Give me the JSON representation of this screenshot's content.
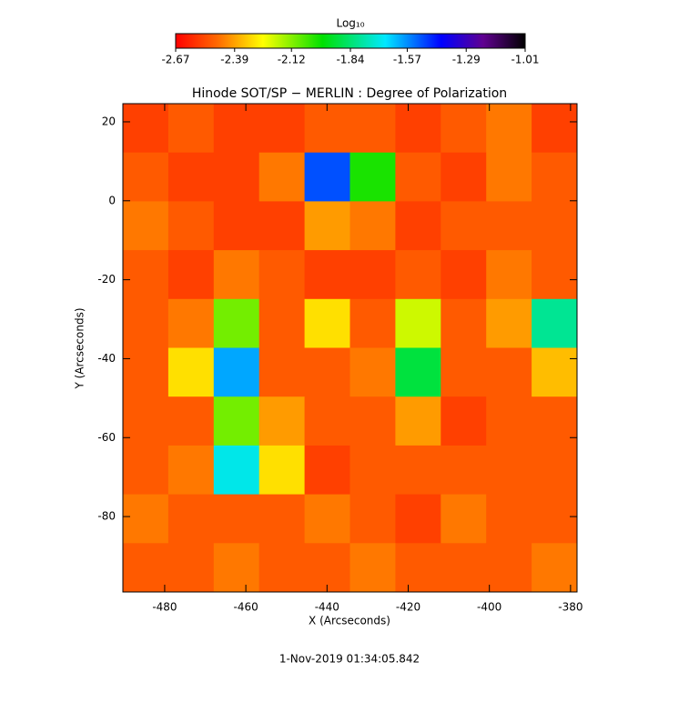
{
  "chart_data": {
    "type": "heatmap",
    "title": "Hinode SOT/SP − MERLIN : Degree of Polarization",
    "xlabel": "X (Arcseconds)",
    "ylabel": "Y (Arcseconds)",
    "colorbar_label": "Log₁₀",
    "footer": "1-Nov-2019 01:34:05.842",
    "xlim": [
      -490.3,
      -378.4
    ],
    "ylim": [
      -99.1,
      24.6
    ],
    "xticks": [
      -480,
      -460,
      -440,
      -420,
      -400,
      -380
    ],
    "yticks": [
      -80,
      -60,
      -40,
      -20,
      0,
      20
    ],
    "clim": [
      -2.67,
      -1.01
    ],
    "cticks": [
      -2.67,
      -2.39,
      -2.12,
      -1.84,
      -1.57,
      -1.29,
      -1.01
    ],
    "z": [
      [
        -2.55,
        -2.5,
        -2.55,
        -2.55,
        -2.5,
        -2.5,
        -2.55,
        -2.5,
        -2.45,
        -2.55
      ],
      [
        -2.5,
        -2.55,
        -2.55,
        -2.45,
        -1.5,
        -2.0,
        -2.5,
        -2.55,
        -2.45,
        -2.5
      ],
      [
        -2.45,
        -2.5,
        -2.55,
        -2.55,
        -2.4,
        -2.45,
        -2.55,
        -2.5,
        -2.5,
        -2.5
      ],
      [
        -2.5,
        -2.55,
        -2.45,
        -2.5,
        -2.55,
        -2.55,
        -2.5,
        -2.55,
        -2.45,
        -2.5
      ],
      [
        -2.5,
        -2.45,
        -2.1,
        -2.5,
        -2.3,
        -2.5,
        -2.2,
        -2.5,
        -2.4,
        -1.8
      ],
      [
        -2.5,
        -2.3,
        -1.6,
        -2.5,
        -2.5,
        -2.45,
        -1.9,
        -2.5,
        -2.5,
        -2.35
      ],
      [
        -2.5,
        -2.5,
        -2.1,
        -2.4,
        -2.5,
        -2.5,
        -2.4,
        -2.55,
        -2.5,
        -2.5
      ],
      [
        -2.5,
        -2.45,
        -1.7,
        -2.3,
        -2.55,
        -2.5,
        -2.5,
        -2.5,
        -2.5,
        -2.5
      ],
      [
        -2.45,
        -2.5,
        -2.5,
        -2.5,
        -2.45,
        -2.5,
        -2.55,
        -2.45,
        -2.5,
        -2.5
      ],
      [
        -2.5,
        -2.5,
        -2.45,
        -2.5,
        -2.5,
        -2.45,
        -2.5,
        -2.5,
        -2.5,
        -2.45
      ]
    ]
  }
}
